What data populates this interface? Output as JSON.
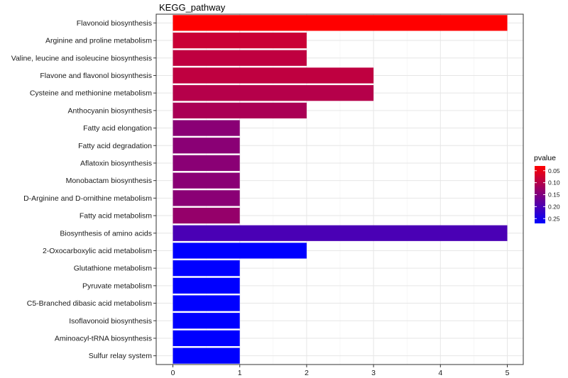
{
  "chart_data": {
    "type": "bar",
    "orientation": "horizontal",
    "title": "KEGG_pathway",
    "xlabel": "",
    "ylabel": "",
    "xlim": [
      0,
      5.25
    ],
    "xticks": [
      0,
      1,
      2,
      3,
      4,
      5
    ],
    "grid": true,
    "legend_position": "right",
    "categories": [
      "Flavonoid biosynthesis",
      "Arginine and proline metabolism",
      "Valine, leucine and isoleucine biosynthesis",
      "Flavone and flavonol biosynthesis",
      "Cysteine and methionine metabolism",
      "Anthocyanin biosynthesis",
      "Fatty acid elongation",
      "Fatty acid degradation",
      "Aflatoxin biosynthesis",
      "Monobactam biosynthesis",
      "D-Arginine and D-ornithine metabolism",
      "Fatty acid metabolism",
      "Biosynthesis of amino acids",
      "2-Oxocarboxylic acid metabolism",
      "Glutathione metabolism",
      "Pyruvate metabolism",
      "C5-Branched dibasic acid metabolism",
      "Isoflavonoid biosynthesis",
      "Aminoacyl-tRNA biosynthesis",
      "Sulfur relay system"
    ],
    "values": [
      5,
      2,
      2,
      3,
      3,
      2,
      1,
      1,
      1,
      1,
      1,
      1,
      5,
      2,
      1,
      1,
      1,
      1,
      1,
      1
    ],
    "pvalues": [
      0.03,
      0.08,
      0.09,
      0.09,
      0.1,
      0.11,
      0.14,
      0.14,
      0.14,
      0.14,
      0.14,
      0.13,
      0.2,
      0.27,
      0.27,
      0.27,
      0.27,
      0.27,
      0.27,
      0.27
    ],
    "colorscale": {
      "name": "pvalue",
      "low_color": "#ff0000",
      "high_color": "#0000ff",
      "range": [
        0.03,
        0.27
      ],
      "ticks": [
        "0.05",
        "0.10",
        "0.15",
        "0.20",
        "0.25"
      ],
      "tick_values": [
        0.05,
        0.1,
        0.15,
        0.2,
        0.25
      ]
    }
  }
}
